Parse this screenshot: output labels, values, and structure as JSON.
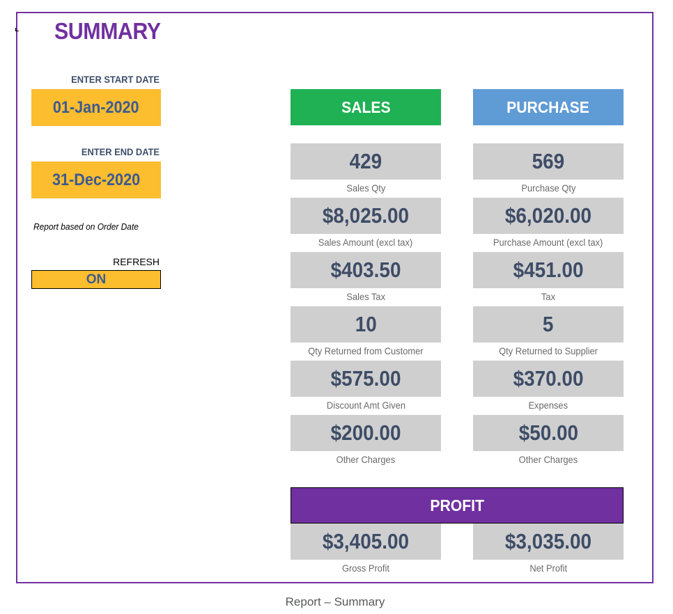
{
  "title": "SUMMARY",
  "filters": {
    "start_label": "ENTER START DATE",
    "start_value": "01-Jan-2020",
    "end_label": "ENTER END DATE",
    "end_value": "31-Dec-2020",
    "note": "Report based on Order Date",
    "refresh_label": "REFRESH",
    "refresh_value": "ON"
  },
  "sales": {
    "header": "SALES",
    "metrics": [
      {
        "value": "429",
        "label": "Sales Qty"
      },
      {
        "value": "$8,025.00",
        "label": "Sales Amount (excl tax)"
      },
      {
        "value": "$403.50",
        "label": "Sales Tax"
      },
      {
        "value": "10",
        "label": "Qty Returned from Customer"
      },
      {
        "value": "$575.00",
        "label": "Discount Amt Given"
      },
      {
        "value": "$200.00",
        "label": "Other Charges"
      }
    ]
  },
  "purchase": {
    "header": "PURCHASE",
    "metrics": [
      {
        "value": "569",
        "label": "Purchase Qty"
      },
      {
        "value": "$6,020.00",
        "label": "Purchase Amount (excl tax)"
      },
      {
        "value": "$451.00",
        "label": "Tax"
      },
      {
        "value": "5",
        "label": "Qty Returned to Supplier"
      },
      {
        "value": "$370.00",
        "label": "Expenses"
      },
      {
        "value": "$50.00",
        "label": "Other Charges"
      }
    ]
  },
  "profit": {
    "header": "PROFIT",
    "gross_value": "$3,405.00",
    "gross_label": "Gross Profit",
    "net_value": "$3,035.00",
    "net_label": "Net Profit"
  },
  "caption": "Report – Summary",
  "colors": {
    "accent": "#7030a0",
    "sales": "#1fb154",
    "purchase": "#5f9bd5",
    "input": "#fcbd2f",
    "card": "#d0cfd0",
    "value_text": "#3e4d66"
  }
}
